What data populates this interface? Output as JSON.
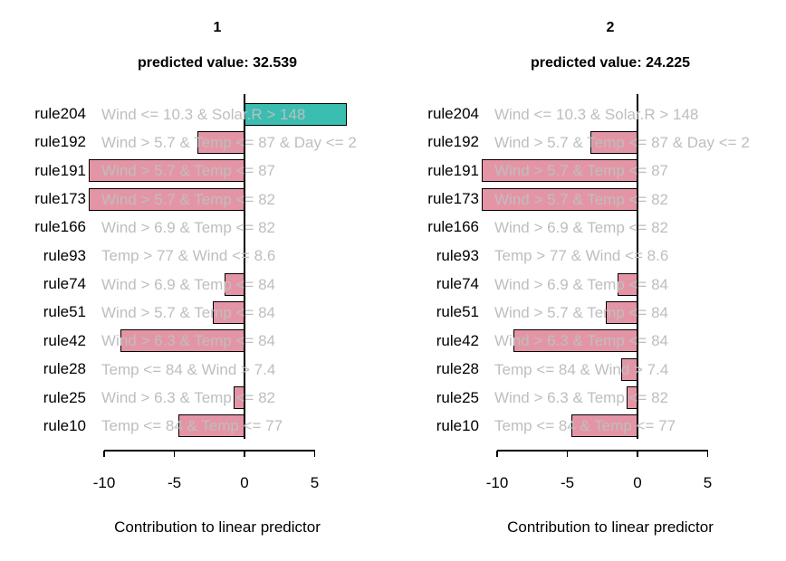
{
  "chart_data": {
    "type": "bar",
    "orientation": "horizontal",
    "xlabel": "Contribution to linear predictor",
    "x_ticks": [
      -10,
      -5,
      0,
      5
    ],
    "xlim": [
      -11.5,
      7.5
    ],
    "grid": false,
    "legend": false,
    "categories": [
      "rule204",
      "rule192",
      "rule191",
      "rule173",
      "rule166",
      "rule93",
      "rule74",
      "rule51",
      "rule42",
      "rule28",
      "rule25",
      "rule10"
    ],
    "rule_conditions": [
      "Wind <= 10.3 & Solar.R > 148",
      "Wind > 5.7 & Temp <= 87 & Day <= 2",
      "Wind > 5.7 & Temp <= 87",
      "Wind > 5.7 & Temp <= 82",
      "Wind > 6.9 & Temp <= 82",
      "Temp > 77 & Wind <= 8.6",
      "Wind > 6.9 & Temp <= 84",
      "Wind > 5.7 & Temp <= 84",
      "Wind > 6.3 & Temp <= 84",
      "Temp <= 84 & Wind > 7.4",
      "Wind > 6.3 & Temp <= 82",
      "Temp <= 84 & Temp <= 77"
    ],
    "panels": [
      {
        "title": "1",
        "predicted_label": "predicted value: 32.539",
        "predicted_value": 32.539,
        "values": [
          7.3,
          -3.35,
          -11.1,
          -11.1,
          0,
          0,
          -1.4,
          -2.25,
          -8.85,
          0,
          -0.78,
          -4.7
        ]
      },
      {
        "title": "2",
        "predicted_label": "predicted value: 24.225",
        "predicted_value": 24.225,
        "values": [
          0,
          -3.35,
          -11.1,
          -11.1,
          0,
          0,
          -1.4,
          -2.25,
          -8.85,
          -1.18,
          -0.78,
          -4.7
        ]
      }
    ],
    "colors": {
      "positive_bar": "#39BEB1",
      "negative_bar": "#E495A5",
      "bar_border": "#000000",
      "condition_text": "#BEBEBE",
      "label_text": "#000000"
    }
  }
}
